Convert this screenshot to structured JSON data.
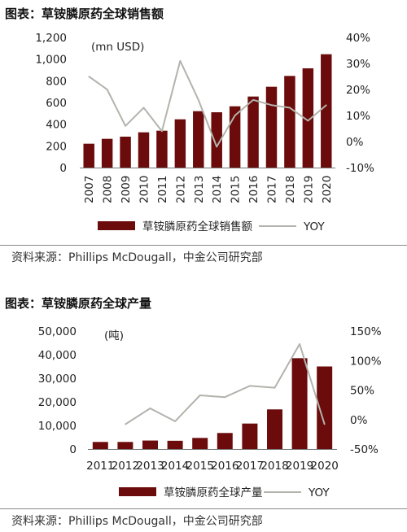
{
  "colors": {
    "bar": "#6b0b0b",
    "line": "#b3b3ad",
    "rule": "#8a8a8a"
  },
  "chart_data": [
    {
      "type": "bar",
      "title": "图表：草铵膦原药全球销售额",
      "unit_label": "(mn USD)",
      "categories": [
        "2007",
        "2008",
        "2009",
        "2010",
        "2011",
        "2012",
        "2013",
        "2014",
        "2015",
        "2016",
        "2017",
        "2018",
        "2019",
        "2020"
      ],
      "series": [
        {
          "name": "草铵膦原药全球销售额",
          "kind": "bar",
          "values": [
            220,
            265,
            285,
            325,
            340,
            445,
            520,
            510,
            565,
            655,
            745,
            845,
            915,
            1045
          ]
        },
        {
          "name": "YOY",
          "kind": "line",
          "axis": "right",
          "values": [
            25,
            20,
            6,
            13,
            4,
            31,
            16,
            -2,
            10,
            16,
            14,
            13,
            8,
            14
          ]
        }
      ],
      "yticks_left": [
        "0",
        "200",
        "400",
        "600",
        "800",
        "1,000",
        "1,200"
      ],
      "yticks_right": [
        "-10%",
        "0%",
        "10%",
        "20%",
        "30%",
        "40%"
      ],
      "ylim_left": [
        0,
        1200
      ],
      "ylim_right": [
        -10,
        40
      ],
      "legend": "bottom",
      "source": "资料来源：Phillips McDougall，中金公司研究部"
    },
    {
      "type": "bar",
      "title": "图表：草铵膦原药全球产量",
      "unit_label": "(吨)",
      "categories": [
        "2011",
        "2012",
        "2013",
        "2014",
        "2015",
        "2016",
        "2017",
        "2018",
        "2019",
        "2020"
      ],
      "series": [
        {
          "name": "草铵膦原药全球产量",
          "kind": "bar",
          "values": [
            3000,
            3000,
            3600,
            3500,
            4700,
            6800,
            10800,
            16800,
            38500,
            35000
          ]
        },
        {
          "name": "YOY",
          "kind": "line",
          "axis": "right",
          "values": [
            null,
            -8,
            19,
            -3,
            41,
            38,
            57,
            54,
            128,
            -8
          ]
        }
      ],
      "yticks_left": [
        "0",
        "10,000",
        "20,000",
        "30,000",
        "40,000",
        "50,000"
      ],
      "yticks_right": [
        "-50%",
        "0%",
        "50%",
        "100%",
        "150%"
      ],
      "ylim_left": [
        0,
        50000
      ],
      "ylim_right": [
        -50,
        150
      ],
      "legend": "bottom",
      "source": "资料来源：Phillips McDougall，中金公司研究部"
    }
  ]
}
